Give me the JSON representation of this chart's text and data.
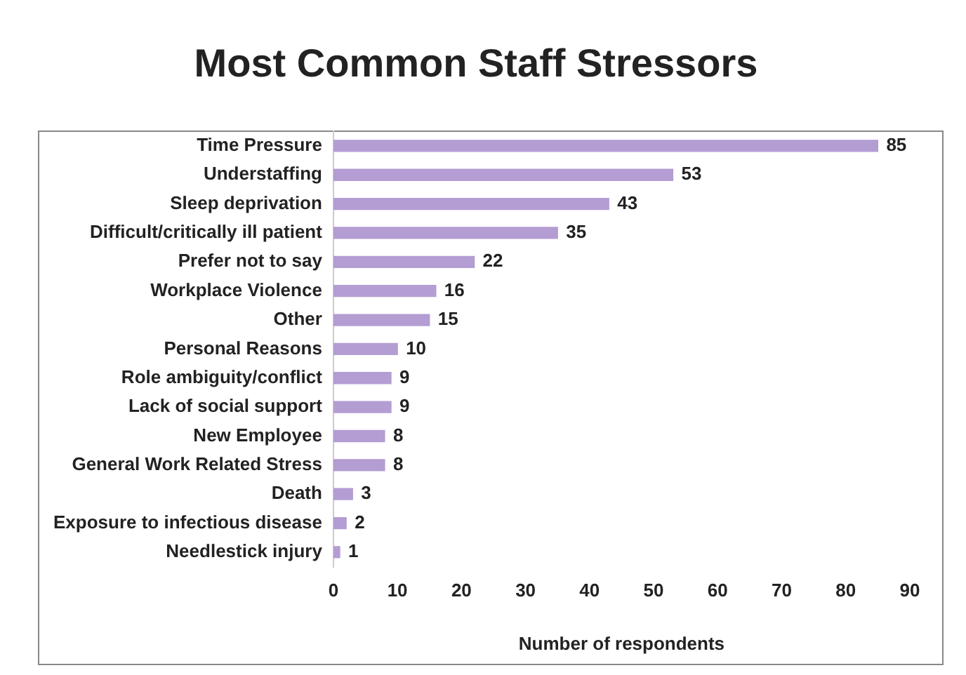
{
  "chart_data": {
    "type": "bar",
    "orientation": "horizontal",
    "title": "Most Common Staff Stressors",
    "xlabel": "Number of respondents",
    "categories": [
      "Time Pressure",
      "Understaffing",
      "Sleep deprivation",
      "Difficult/critically ill patient",
      "Prefer not to say",
      "Workplace Violence",
      "Other",
      "Personal Reasons",
      "Role ambiguity/conflict",
      "Lack of social support",
      "New Employee",
      "General Work Related Stress",
      "Death",
      "Exposure to infectious disease",
      "Needlestick injury"
    ],
    "values": [
      85,
      53,
      43,
      35,
      22,
      16,
      15,
      10,
      9,
      9,
      8,
      8,
      3,
      2,
      1
    ],
    "color": "#b39dd3",
    "xlim": [
      0,
      90
    ],
    "xticks": [
      0,
      10,
      20,
      30,
      40,
      50,
      60,
      70,
      80,
      90
    ],
    "grid": false,
    "data_labels": true,
    "legend": false
  }
}
